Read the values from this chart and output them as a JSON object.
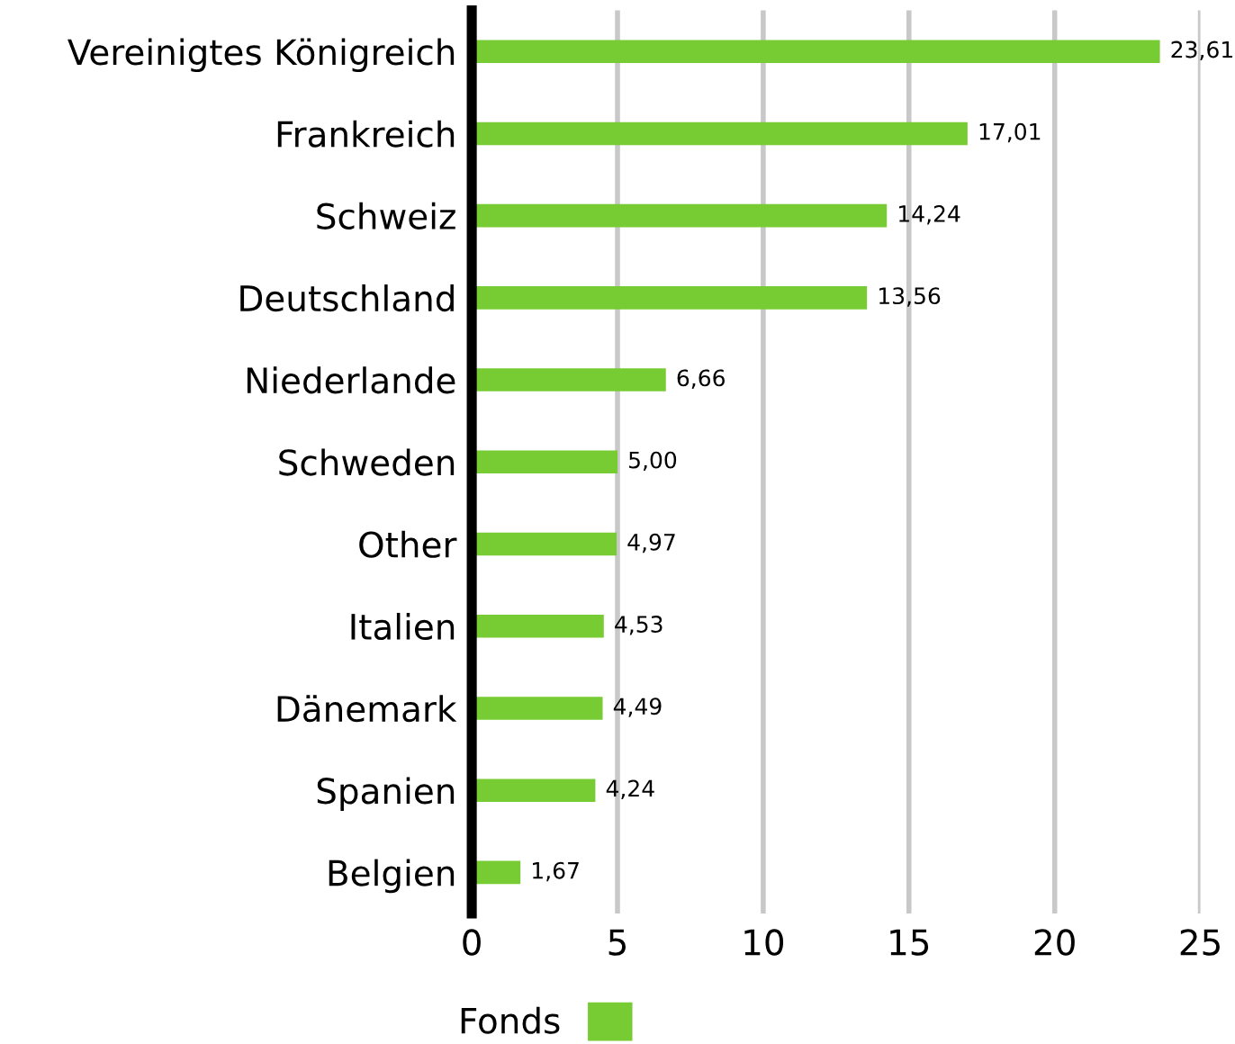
{
  "chart_data": {
    "type": "bar",
    "orientation": "horizontal",
    "categories": [
      "Vereinigtes Königreich",
      "Frankreich",
      "Schweiz",
      "Deutschland",
      "Niederlande",
      "Schweden",
      "Other",
      "Italien",
      "Dänemark",
      "Spanien",
      "Belgien"
    ],
    "series": [
      {
        "name": "Fonds",
        "color": "#77cc33",
        "values": [
          23.61,
          17.01,
          14.24,
          13.56,
          6.66,
          5.0,
          4.97,
          4.53,
          4.49,
          4.24,
          1.67
        ],
        "value_labels": [
          "23,61",
          "17,01",
          "14,24",
          "13,56",
          "6,66",
          "5,00",
          "4,97",
          "4,53",
          "4,49",
          "4,24",
          "1,67"
        ]
      }
    ],
    "xlim": [
      0,
      25
    ],
    "xticks": [
      0,
      5,
      10,
      15,
      20,
      25
    ],
    "grid": "x",
    "legend": "bottom"
  }
}
